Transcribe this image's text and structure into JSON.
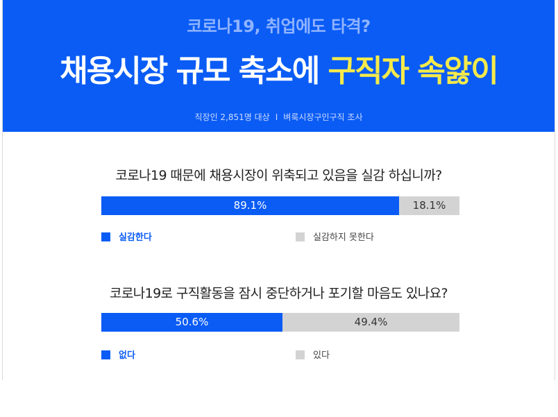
{
  "header": {
    "supertitle": "코로나19, 취업에도 타격?",
    "title_part1": "채용시장 규모 축소에 ",
    "title_highlight": "구직자 속앓이",
    "survey_note": "직장인 2,851명 대상",
    "survey_sep": "I",
    "survey_source": "벼룩시장구인구직 조사"
  },
  "colors": {
    "header_bg": "#0a5cf5",
    "accent": "#0a5cf5",
    "highlight": "#f5ea4b",
    "gray": "#d3d3d3"
  },
  "chart_data": [
    {
      "type": "bar",
      "title": "코로나19 때문에 채용시장이 위축되고 있음을 실감 하십니까?",
      "series": [
        {
          "name": "실감한다",
          "value": 89.1,
          "label": "89.1%",
          "color": "#0a5cf5"
        },
        {
          "name": "실감하지 못한다",
          "value": 18.1,
          "label": "18.1%",
          "color": "#d3d3d3"
        }
      ]
    },
    {
      "type": "bar",
      "title": "코로나19로 구직활동을 잠시 중단하거나 포기할 마음도 있나요?",
      "series": [
        {
          "name": "없다",
          "value": 50.6,
          "label": "50.6%",
          "color": "#0a5cf5"
        },
        {
          "name": "있다",
          "value": 49.4,
          "label": "49.4%",
          "color": "#d3d3d3"
        }
      ]
    }
  ]
}
